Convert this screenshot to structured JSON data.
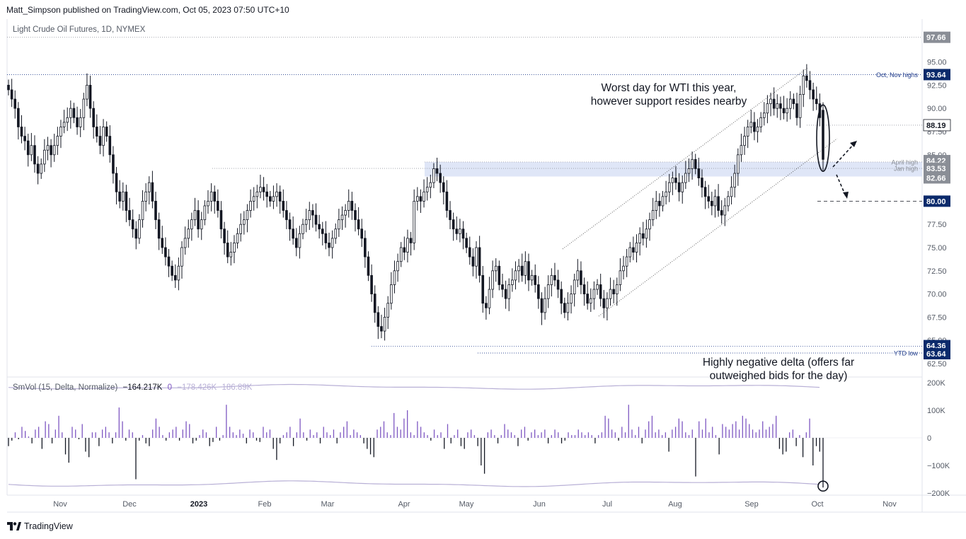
{
  "header": {
    "published_line": "Matt_Simpson published on TradingView.com, Oct 05, 2023 07:50 UTC+10",
    "symbol_line": "Light Crude Oil Futures, 1D, NYMEX"
  },
  "indicator_legend": {
    "name": "SmVol (15, Delta, Normalize)",
    "v1": "−164.217K",
    "v2": "0",
    "v3": "−178.426K",
    "v4": "186.89K"
  },
  "footer": {
    "brand": "TradingView"
  },
  "colors": {
    "candle": "#131722",
    "vol_positive": "#7e57c2",
    "vol_negative": "#131722",
    "envelope": "#b8b0d6",
    "zone": "#dfe6f7",
    "tag_dark": "#131722",
    "tag_blue": "#0b2a6b",
    "tag_gray": "#8a8e96",
    "level_line": "#1e3a8a"
  },
  "chart_data": {
    "type": "candlestick",
    "title": "Light Crude Oil Futures, 1D, NYMEX",
    "x_months": [
      "Nov",
      "Dec",
      "2023",
      "Feb",
      "Mar",
      "Apr",
      "May",
      "Jun",
      "Jul",
      "Aug",
      "Sep",
      "Oct",
      "Nov"
    ],
    "y_ticks": [
      "95.00",
      "92.50",
      "90.00",
      "87.50",
      "85.00",
      "82.50",
      "77.50",
      "75.00",
      "72.50",
      "70.00",
      "67.50",
      "65.00",
      "62.50"
    ],
    "ylim": [
      61.5,
      98.5
    ],
    "price_levels": [
      {
        "label": "97.66",
        "value": 97.66,
        "style": "gray"
      },
      {
        "label": "93.64",
        "value": 93.64,
        "style": "blue"
      },
      {
        "label": "88.19",
        "value": 88.19,
        "style": "white"
      },
      {
        "label": "84.22",
        "value": 84.22,
        "style": "gray"
      },
      {
        "label": "83.53",
        "value": 83.53,
        "style": "gray"
      },
      {
        "label": "82.66",
        "value": 82.66,
        "style": "gray"
      },
      {
        "label": "80.00",
        "value": 80.0,
        "style": "blue"
      },
      {
        "label": "64.36",
        "value": 64.36,
        "style": "blue"
      },
      {
        "label": "63.64",
        "value": 63.64,
        "style": "blue"
      }
    ],
    "level_labels": [
      {
        "text": "Oct, Nov highs",
        "value": 93.64
      },
      {
        "text": "April high",
        "value": 84.22
      },
      {
        "text": "Jan high",
        "value": 83.53
      },
      {
        "text": "YTD low",
        "value": 63.64
      }
    ],
    "annotations": {
      "worst_day": [
        "Worst day for WTI this year,",
        "however support resides nearby"
      ],
      "delta_note": [
        "Highly negative delta (offers far",
        "outweighed bids for the day)"
      ]
    },
    "indicator_axis": [
      "200K",
      "100K",
      "0",
      "−100K",
      "−200K"
    ],
    "indicator_ylim": [
      -200,
      200
    ],
    "closes": [
      92,
      91,
      90,
      88,
      87,
      86.5,
      85,
      86,
      84,
      83,
      84,
      85.5,
      86,
      85,
      86,
      87,
      88,
      88.5,
      89,
      90,
      89,
      88,
      89,
      91,
      92.5,
      90,
      88,
      87,
      86,
      88,
      87,
      85,
      83,
      81,
      80,
      81,
      79,
      78,
      77,
      76,
      78,
      80,
      81,
      82,
      80,
      78,
      76,
      75,
      74,
      73,
      72,
      71.5,
      73,
      75,
      76,
      77,
      78,
      79,
      77,
      78,
      79.5,
      80,
      81,
      80,
      79,
      77,
      75.5,
      74,
      74.5,
      75.5,
      76.5,
      77.5,
      78,
      79,
      80,
      80.5,
      81,
      81.5,
      81,
      80.5,
      80,
      80.5,
      81,
      80,
      79,
      78,
      77,
      76,
      75,
      76.5,
      77.5,
      78,
      79,
      78.5,
      77.5,
      77,
      76.5,
      75.5,
      75,
      76,
      77,
      78,
      78.5,
      79,
      80,
      79,
      78,
      77,
      76,
      74,
      72,
      70,
      68,
      66.5,
      66,
      67.5,
      69,
      71,
      72.5,
      73.5,
      75,
      74.5,
      76,
      75.5,
      80,
      80.5,
      80,
      81,
      81.5,
      82,
      83.5,
      83,
      82,
      81,
      79,
      78,
      77,
      76.5,
      77,
      76,
      75,
      74,
      73,
      75,
      72,
      69,
      68.5,
      70.5,
      72.5,
      73,
      71,
      70.5,
      69.5,
      71,
      71.5,
      72.5,
      73,
      72,
      73.5,
      71.5,
      72,
      71,
      69.5,
      68,
      69.5,
      71,
      72,
      71.5,
      70.5,
      69,
      68,
      69,
      70,
      71.5,
      72.5,
      71,
      70,
      69,
      69.5,
      70.5,
      71,
      69.5,
      68.5,
      69.5,
      70.5,
      70,
      71,
      72.5,
      73,
      74,
      75,
      74.5,
      75.5,
      76.5,
      76,
      77,
      78,
      79,
      80,
      79.5,
      80.5,
      81,
      82,
      82.5,
      82,
      81,
      82,
      83,
      83.5,
      84.5,
      83.5,
      82.5,
      81.5,
      80.5,
      80,
      79.5,
      80.5,
      79,
      78.5,
      79.5,
      80.5,
      81.5,
      83,
      85,
      86,
      87,
      88,
      88.5,
      87.5,
      88,
      89,
      89.5,
      90.5,
      91,
      90,
      90.5,
      90,
      89.5,
      90,
      91,
      90.5,
      89,
      91.5,
      93.5,
      93,
      92,
      91,
      90.5,
      89,
      84.5
    ],
    "delta": [
      -30,
      -10,
      20,
      -5,
      40,
      25,
      5,
      -20,
      30,
      40,
      -40,
      60,
      50,
      -20,
      30,
      80,
      20,
      -60,
      -90,
      40,
      30,
      -5,
      50,
      -50,
      -70,
      20,
      20,
      -30,
      30,
      40,
      20,
      -20,
      20,
      110,
      60,
      -10,
      30,
      20,
      -150,
      -10,
      10,
      -20,
      -30,
      30,
      70,
      40,
      10,
      -10,
      20,
      30,
      40,
      -10,
      30,
      60,
      50,
      -20,
      -10,
      10,
      30,
      20,
      -30,
      -15,
      40,
      -10,
      10,
      120,
      40,
      20,
      10,
      30,
      15,
      -20,
      30,
      20,
      -10,
      -15,
      40,
      20,
      30,
      -40,
      -80,
      -20,
      10,
      20,
      40,
      -30,
      20,
      70,
      20,
      -10,
      30,
      10,
      20,
      -20,
      40,
      20,
      10,
      30,
      -20,
      20,
      40,
      60,
      10,
      30,
      20,
      10,
      -20,
      -40,
      -60,
      -70,
      30,
      40,
      60,
      20,
      10,
      90,
      40,
      30,
      70,
      100,
      20,
      10,
      60,
      40,
      20,
      10,
      -10,
      30,
      10,
      20,
      -40,
      50,
      -20,
      10,
      30,
      -30,
      -40,
      20,
      30,
      10,
      -30,
      -100,
      -130,
      20,
      30,
      10,
      -20,
      10,
      50,
      30,
      20,
      10,
      -30,
      30,
      40,
      -10,
      20,
      30,
      10,
      20,
      30,
      -20,
      10,
      30,
      20,
      -20,
      -10,
      20,
      10,
      10,
      30,
      20,
      10,
      20,
      10,
      -20,
      10,
      20,
      80,
      70,
      30,
      20,
      -10,
      40,
      20,
      120,
      30,
      10,
      40,
      -20,
      30,
      60,
      80,
      20,
      30,
      10,
      20,
      -50,
      30,
      40,
      70,
      60,
      20,
      10,
      30,
      -140,
      60,
      30,
      70,
      20,
      40,
      10,
      -60,
      50,
      40,
      30,
      50,
      60,
      30,
      80,
      70,
      50,
      30,
      20,
      30,
      60,
      30,
      40,
      50,
      80,
      -40,
      -60,
      -50,
      20,
      30,
      -30,
      10,
      -70,
      20,
      70,
      -100,
      -30,
      -50,
      -180
    ],
    "annotation_marks": {
      "channel_upper": [
        [
          795,
          352
        ],
        [
          1141,
          96
        ]
      ],
      "channel_lower": [
        [
          846,
          447
        ],
        [
          1183,
          196
        ]
      ]
    }
  }
}
